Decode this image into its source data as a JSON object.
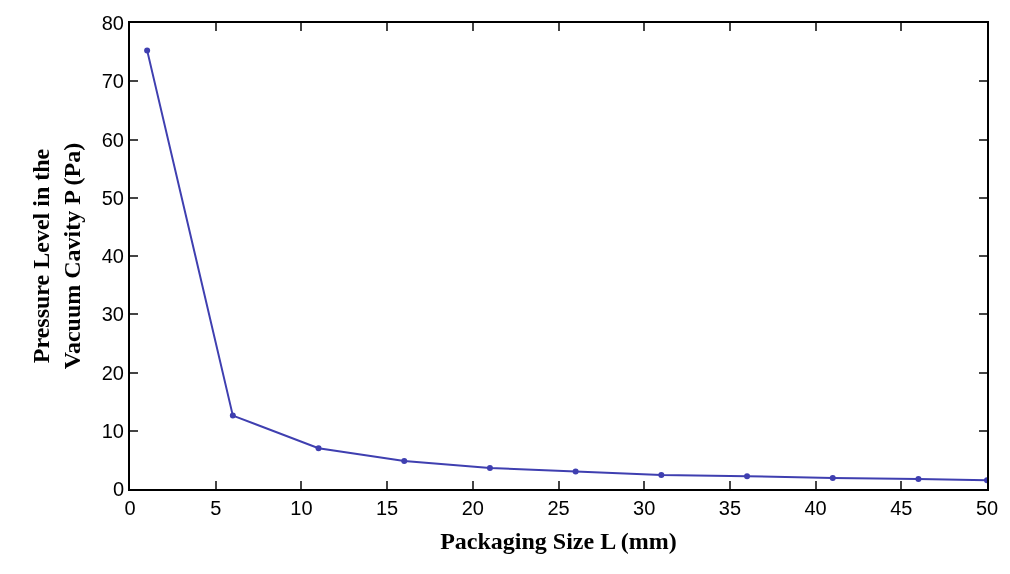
{
  "chart_data": {
    "type": "line",
    "xlabel": "Packaging Size L (mm)",
    "ylabel": "Pressure Level in the\nVacuum Cavity P (Pa)",
    "x": [
      1,
      6,
      11,
      16,
      21,
      26,
      31,
      36,
      41,
      46,
      50
    ],
    "series": [
      {
        "color": "#3f3fb0",
        "values": [
          75.3,
          12.6,
          7.0,
          4.8,
          3.6,
          3.0,
          2.4,
          2.2,
          1.9,
          1.7,
          1.5
        ]
      }
    ],
    "xlim": [
      0,
      50
    ],
    "xticks": [
      0,
      5,
      10,
      15,
      20,
      25,
      30,
      35,
      40,
      45,
      50
    ],
    "ylim": [
      0,
      80
    ],
    "yticks": [
      0,
      10,
      20,
      30,
      40,
      50,
      60,
      70,
      80
    ],
    "grid": false,
    "marker": "circle",
    "line_style": "solid"
  }
}
